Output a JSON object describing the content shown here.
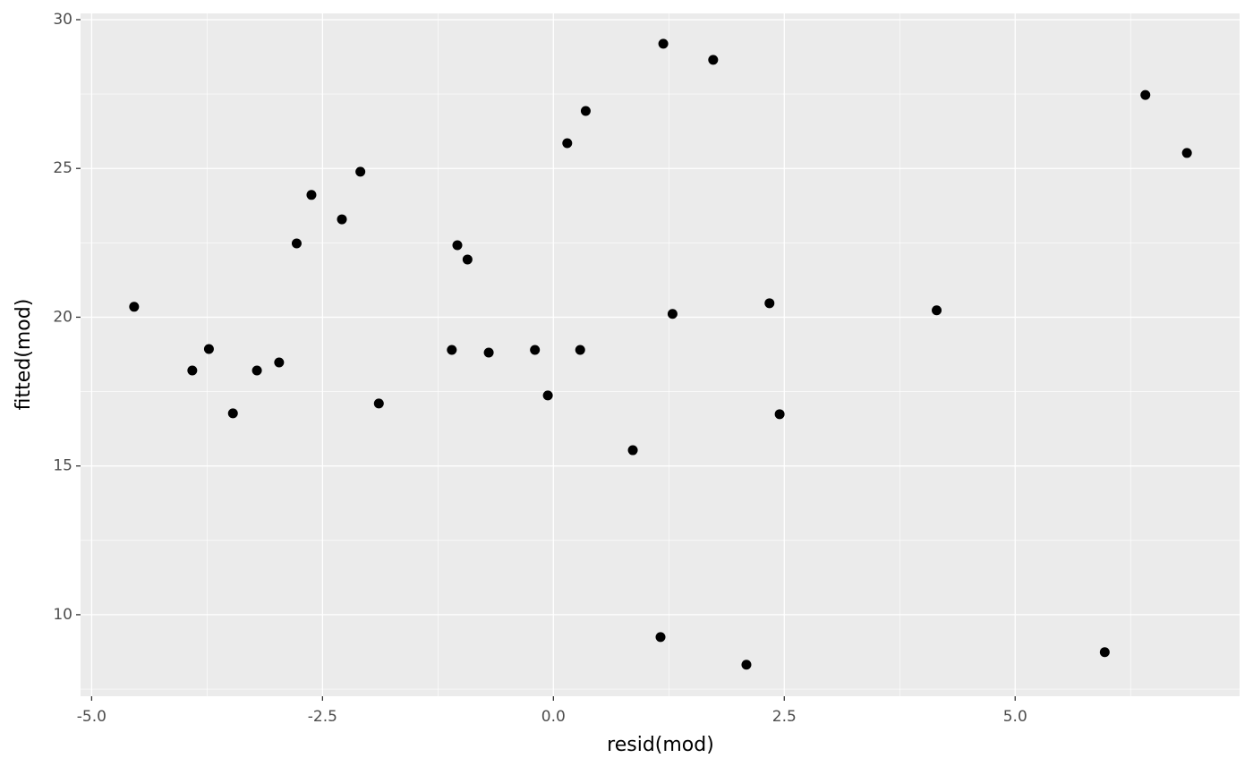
{
  "chart_data": {
    "type": "scatter",
    "x_label": "resid(mod)",
    "y_label": "fitted(mod)",
    "series": [
      {
        "color": "#000000",
        "x": [
          -4.54,
          -3.91,
          -3.73,
          -3.47,
          -3.21,
          -2.97,
          -2.78,
          -2.62,
          -2.29,
          -2.09,
          -1.89,
          -1.1,
          -1.04,
          -0.93,
          -0.7,
          -0.2,
          -0.06,
          0.15,
          0.29,
          0.35,
          0.86,
          1.16,
          1.19,
          1.29,
          1.73,
          2.09,
          2.34,
          2.45,
          4.15,
          5.97,
          6.41,
          6.86
        ],
        "values": [
          20.35,
          18.21,
          18.93,
          16.77,
          18.21,
          18.48,
          22.48,
          24.11,
          23.29,
          24.89,
          17.1,
          18.9,
          22.42,
          21.94,
          18.81,
          18.9,
          17.37,
          25.85,
          18.9,
          26.93,
          15.53,
          9.25,
          29.19,
          20.11,
          28.65,
          8.32,
          20.47,
          16.74,
          20.23,
          8.74,
          27.47,
          25.52
        ]
      }
    ],
    "xlim": [
      -5.12,
      7.43
    ],
    "ylim": [
      7.26,
      30.21
    ],
    "xticks": [
      {
        "value": -5,
        "label": "-5.0"
      },
      {
        "value": -2.5,
        "label": "-2.5"
      },
      {
        "value": 0,
        "label": "0.0"
      },
      {
        "value": 2.5,
        "label": "2.5"
      },
      {
        "value": 5,
        "label": "5.0"
      }
    ],
    "yticks": [
      10,
      15,
      20,
      25,
      30
    ],
    "grid": true,
    "minor_grid": true,
    "background": "#ebebeb"
  }
}
